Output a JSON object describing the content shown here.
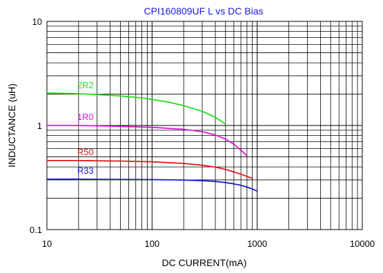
{
  "chart_data": {
    "type": "line",
    "title": "CPI160809UF L vs DC Bias",
    "xlabel": "DC CURRENT(mA)",
    "ylabel": "INDUCTANCE (uH)",
    "x_scale": "log",
    "y_scale": "log",
    "xlim": [
      10,
      10000
    ],
    "ylim": [
      0.1,
      10
    ],
    "x_ticks": [
      10,
      100,
      1000,
      10000
    ],
    "x_tick_labels": [
      "10",
      "100",
      "1000",
      "10000"
    ],
    "y_ticks": [
      0.1,
      1,
      10
    ],
    "y_tick_labels": [
      "0.1",
      "1",
      "10"
    ],
    "grid": true,
    "legend": "inline labels",
    "colors": {
      "title": "#1a1adb",
      "axis_text": "#000000",
      "grid": "#000000"
    },
    "series": [
      {
        "name": "2R2",
        "color": "#22dd22",
        "x": [
          10,
          20,
          30,
          50,
          80,
          100,
          150,
          200,
          300,
          400,
          500
        ],
        "y": [
          2.05,
          2.02,
          1.98,
          1.92,
          1.84,
          1.78,
          1.66,
          1.55,
          1.37,
          1.2,
          1.03
        ]
      },
      {
        "name": "1R0",
        "color": "#d81ad8",
        "x": [
          10,
          20,
          50,
          100,
          200,
          300,
          400,
          500,
          600,
          700,
          800
        ],
        "y": [
          1.0,
          1.0,
          0.98,
          0.96,
          0.92,
          0.87,
          0.81,
          0.74,
          0.66,
          0.58,
          0.51
        ]
      },
      {
        "name": "R50",
        "color": "#e01a1a",
        "x": [
          10,
          20,
          50,
          100,
          200,
          300,
          400,
          500,
          600,
          700,
          800,
          900
        ],
        "y": [
          0.46,
          0.46,
          0.455,
          0.448,
          0.432,
          0.415,
          0.398,
          0.378,
          0.358,
          0.34,
          0.324,
          0.31
        ]
      },
      {
        "name": "R33",
        "color": "#1a1adb",
        "x": [
          10,
          20,
          50,
          100,
          200,
          300,
          400,
          500,
          600,
          700,
          800,
          900,
          1000
        ],
        "y": [
          0.305,
          0.305,
          0.303,
          0.302,
          0.299,
          0.295,
          0.29,
          0.283,
          0.275,
          0.266,
          0.256,
          0.245,
          0.234
        ]
      }
    ]
  }
}
